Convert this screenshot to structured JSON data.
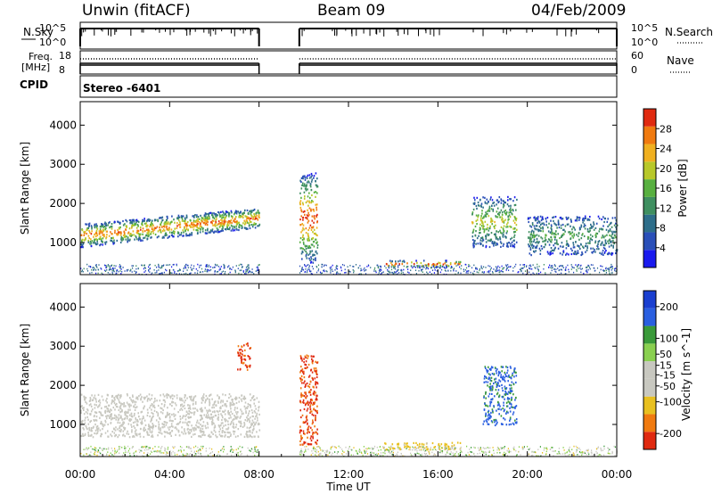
{
  "header": {
    "radar": "Unwin (fitACF)",
    "beam": "Beam 09",
    "date": "04/Feb/2009"
  },
  "strips": {
    "nsky_label": "N.Sky",
    "nsky_ticks": [
      "10^5",
      "10^0"
    ],
    "nsearch_label": "N.Search",
    "freq_label_top": "Freq.",
    "freq_label_bottom": "[MHz]",
    "freq_ticks": [
      "18",
      "8"
    ],
    "nave_label": "Nave",
    "nave_ticks": [
      "60",
      "0"
    ],
    "cpid_label": "CPID",
    "cpid_value": "Stereo -6401"
  },
  "colors": {
    "power_scale": [
      "#1a1aee",
      "#2a4fb8",
      "#2e6e8a",
      "#3f8f60",
      "#58b040",
      "#b8c82a",
      "#f0b020",
      "#f07a10",
      "#e02a10"
    ],
    "velocity_scale": [
      "#1a3fd0",
      "#2a5fe0",
      "#3a9a3a",
      "#8ad050",
      "#c8c8c0",
      "#c8c8c0",
      "#e8c020",
      "#f07a10",
      "#e02a10"
    ]
  },
  "chart_data": [
    {
      "type": "heatmap",
      "title": "",
      "xlabel": "Time UT",
      "ylabel": "Slant Range [km]",
      "x_ticks": [
        "00:00",
        "04:00",
        "08:00",
        "12:00",
        "16:00",
        "20:00",
        "00:00"
      ],
      "xlim_hours": [
        0,
        24
      ],
      "y_ticks": [
        1000,
        2000,
        3000,
        4000
      ],
      "ylim_km": [
        180,
        4600
      ],
      "data_gaps_hours": [
        [
          8.0,
          9.8
        ]
      ],
      "colorbar": {
        "label": "Power [dB]",
        "ticks": [
          4,
          8,
          12,
          16,
          20,
          24,
          28
        ],
        "range": [
          0,
          32
        ]
      },
      "features": [
        {
          "t": [
            0,
            8
          ],
          "range_km": [
            900,
            1800
          ],
          "peak_db": 28,
          "desc": "main band rising with time"
        },
        {
          "t": [
            9.8,
            10.6
          ],
          "range_km": [
            500,
            2800
          ],
          "peak_db": 30
        },
        {
          "t": [
            13.5,
            17
          ],
          "range_km": [
            380,
            560
          ],
          "peak_db": 30
        },
        {
          "t": [
            17.5,
            19.5
          ],
          "range_km": [
            900,
            2200
          ],
          "peak_db": 20
        },
        {
          "t": [
            20,
            24
          ],
          "range_km": [
            700,
            1700
          ],
          "peak_db": 14
        }
      ]
    },
    {
      "type": "heatmap",
      "title": "",
      "xlabel": "Time UT",
      "ylabel": "Slant Range [km]",
      "x_ticks": [
        "00:00",
        "04:00",
        "08:00",
        "12:00",
        "16:00",
        "20:00",
        "00:00"
      ],
      "xlim_hours": [
        0,
        24
      ],
      "y_ticks": [
        1000,
        2000,
        3000,
        4000
      ],
      "ylim_km": [
        180,
        4600
      ],
      "data_gaps_hours": [
        [
          8.0,
          9.8
        ]
      ],
      "colorbar": {
        "label": "Velocity [m s^-1]",
        "ticks": [
          200,
          100,
          50,
          15,
          -15,
          -50,
          -100,
          -200
        ],
        "range": [
          -250,
          250
        ]
      },
      "features": [
        {
          "t": [
            0,
            8
          ],
          "range_km": [
            700,
            1800
          ],
          "velocity": 0,
          "desc": "ground scatter band"
        },
        {
          "t": [
            7,
            7.6
          ],
          "range_km": [
            2400,
            3100
          ],
          "velocity": -200
        },
        {
          "t": [
            9.8,
            10.6
          ],
          "range_km": [
            500,
            2800
          ],
          "velocity": -200
        },
        {
          "t": [
            13.5,
            17
          ],
          "range_km": [
            380,
            560
          ],
          "velocity": -100
        },
        {
          "t": [
            18,
            19.5
          ],
          "range_km": [
            1000,
            2500
          ],
          "velocity": 150
        }
      ]
    }
  ]
}
